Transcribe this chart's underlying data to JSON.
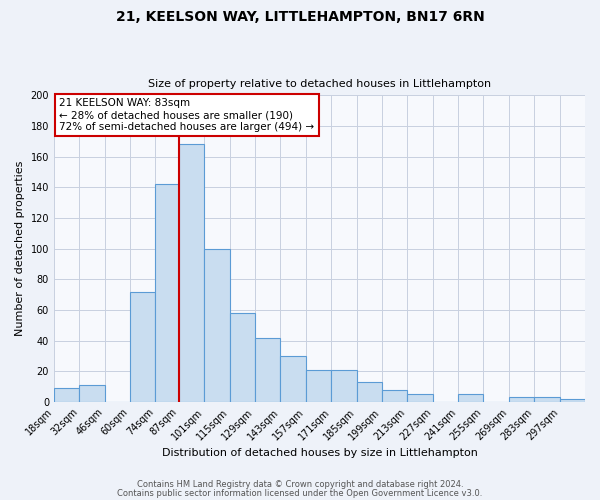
{
  "title": "21, KEELSON WAY, LITTLEHAMPTON, BN17 6RN",
  "subtitle": "Size of property relative to detached houses in Littlehampton",
  "xlabel": "Distribution of detached houses by size in Littlehampton",
  "ylabel": "Number of detached properties",
  "bin_labels": [
    "18sqm",
    "32sqm",
    "46sqm",
    "60sqm",
    "74sqm",
    "87sqm",
    "101sqm",
    "115sqm",
    "129sqm",
    "143sqm",
    "157sqm",
    "171sqm",
    "185sqm",
    "199sqm",
    "213sqm",
    "227sqm",
    "241sqm",
    "255sqm",
    "269sqm",
    "283sqm",
    "297sqm"
  ],
  "bin_positions": [
    18,
    32,
    46,
    60,
    74,
    87,
    101,
    115,
    129,
    143,
    157,
    171,
    185,
    199,
    213,
    227,
    241,
    255,
    269,
    283,
    297
  ],
  "bin_width": 14,
  "bar_heights": [
    9,
    11,
    0,
    72,
    142,
    168,
    100,
    58,
    42,
    30,
    21,
    21,
    13,
    8,
    5,
    0,
    5,
    0,
    3,
    3,
    2
  ],
  "bar_color": "#c9ddf0",
  "bar_edge_color": "#5b9bd5",
  "vline_x": 87,
  "vline_color": "#cc0000",
  "annotation_title": "21 KEELSON WAY: 83sqm",
  "annotation_line1": "← 28% of detached houses are smaller (190)",
  "annotation_line2": "72% of semi-detached houses are larger (494) →",
  "annotation_box_color": "#cc0000",
  "ylim": [
    0,
    200
  ],
  "yticks": [
    0,
    20,
    40,
    60,
    80,
    100,
    120,
    140,
    160,
    180,
    200
  ],
  "xlim_left": 18,
  "xlim_right": 311,
  "ylabel_fontsize": 8,
  "xlabel_fontsize": 8,
  "tick_fontsize": 7,
  "title_fontsize": 10,
  "subtitle_fontsize": 8,
  "footer1": "Contains HM Land Registry data © Crown copyright and database right 2024.",
  "footer2": "Contains public sector information licensed under the Open Government Licence v3.0.",
  "footer_fontsize": 6,
  "bg_color": "#eef2f9",
  "plot_bg_color": "#f7f9fd",
  "grid_color": "#c8d0e0"
}
